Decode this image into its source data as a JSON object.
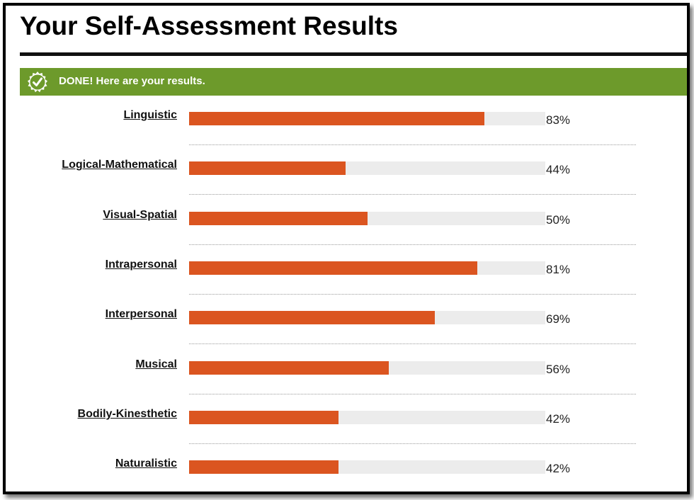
{
  "page": {
    "title": "Your Self-Assessment Results",
    "banner_text": "DONE! Here are your results."
  },
  "colors": {
    "bar_fill": "#db5520",
    "bar_track": "#ececec",
    "banner": "#6d9a2b"
  },
  "icons": {
    "banner_icon": "check-badge-icon"
  },
  "chart_data": {
    "type": "bar",
    "orientation": "horizontal",
    "categories": [
      "Linguistic",
      "Logical-Mathematical",
      "Visual-Spatial",
      "Intrapersonal",
      "Interpersonal",
      "Musical",
      "Bodily-Kinesthetic",
      "Naturalistic"
    ],
    "values": [
      83,
      44,
      50,
      81,
      69,
      56,
      42,
      42
    ],
    "value_labels": [
      "83%",
      "44%",
      "50%",
      "81%",
      "69%",
      "56%",
      "42%",
      "42%"
    ],
    "xlim": [
      0,
      100
    ],
    "grid": false
  }
}
